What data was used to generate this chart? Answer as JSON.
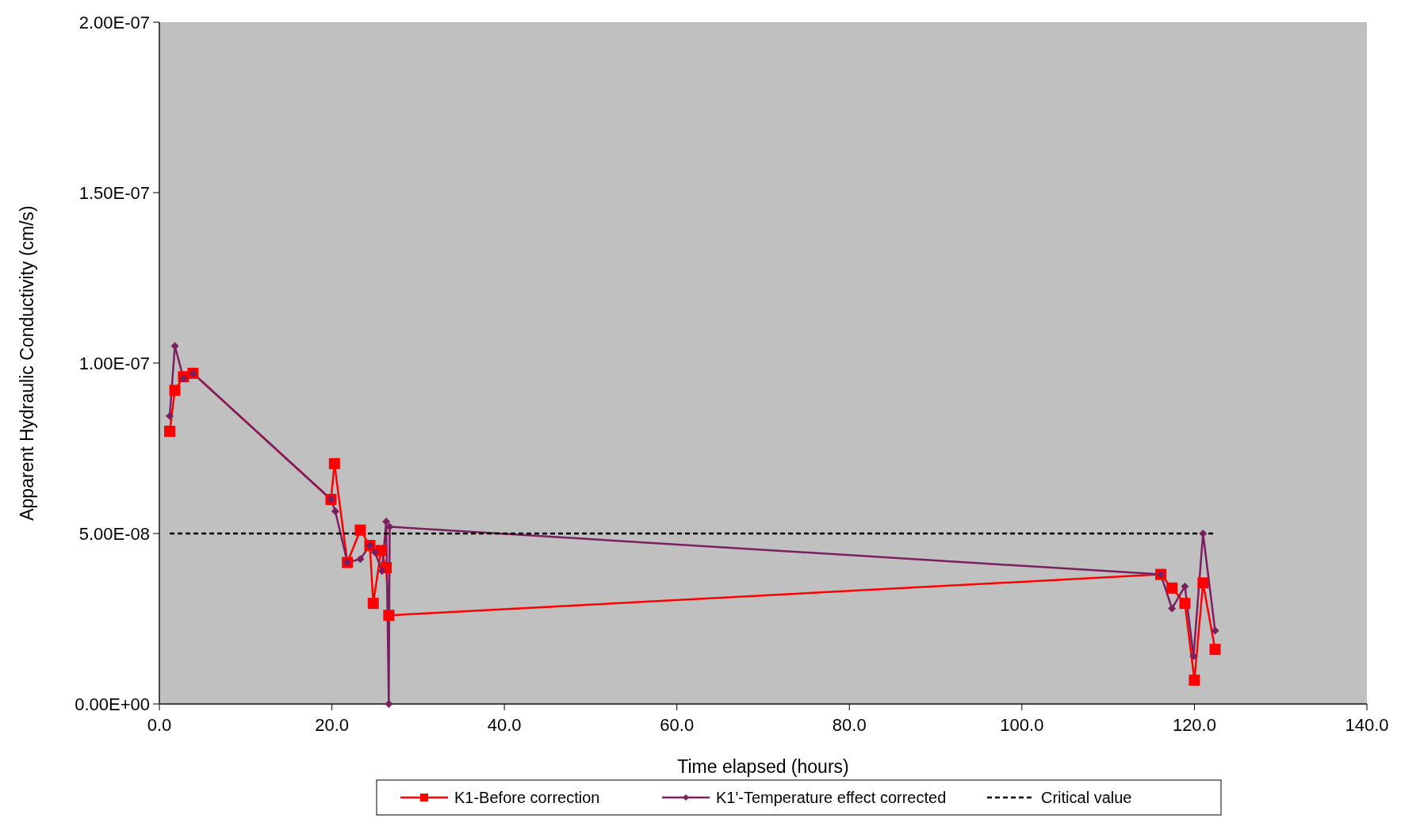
{
  "chart_data": {
    "type": "line",
    "xlabel": "Time elapsed (hours)",
    "ylabel": "Apparent Hydraulic Conductivity (cm/s)",
    "xlim": [
      0,
      140
    ],
    "xticks": [
      {
        "value": 0,
        "label": "0.0"
      },
      {
        "value": 20,
        "label": "20.0"
      },
      {
        "value": 40,
        "label": "40.0"
      },
      {
        "value": 60,
        "label": "60.0"
      },
      {
        "value": 80,
        "label": "80.0"
      },
      {
        "value": 100,
        "label": "100.0"
      },
      {
        "value": 120,
        "label": "120.0"
      },
      {
        "value": 140,
        "label": "140.0"
      }
    ],
    "ylim": [
      0,
      2e-07
    ],
    "yticks": [
      {
        "value": 0,
        "label": "0.00E+00"
      },
      {
        "value": 5e-08,
        "label": "5.00E-08"
      },
      {
        "value": 1e-07,
        "label": "1.00E-07"
      },
      {
        "value": 1.5e-07,
        "label": "1.50E-07"
      },
      {
        "value": 2e-07,
        "label": "2.00E-07"
      }
    ],
    "grid": false,
    "legend": "bottom",
    "series": [
      {
        "name": "K1-Before correction",
        "color": "#ff0000",
        "marker": "square",
        "line_style": "solid",
        "x": [
          1.2,
          1.8,
          2.8,
          3.9,
          19.9,
          20.3,
          21.8,
          23.3,
          24.4,
          24.8,
          25.7,
          26.3,
          26.6,
          116.1,
          117.4,
          118.9,
          120.0,
          121.0,
          122.4
        ],
        "values": [
          8e-08,
          9.2e-08,
          9.6e-08,
          9.7e-08,
          6e-08,
          7.05e-08,
          4.15e-08,
          5.1e-08,
          4.65e-08,
          2.95e-08,
          4.5e-08,
          4e-08,
          2.6e-08,
          3.8e-08,
          3.4e-08,
          2.95e-08,
          7e-09,
          3.55e-08,
          1.6e-08
        ]
      },
      {
        "name": "K1'-Temperature effect corrected",
        "color": "#7b1f5f",
        "marker": "diamond",
        "line_style": "solid",
        "x": [
          1.2,
          1.8,
          2.8,
          3.9,
          19.9,
          20.4,
          21.8,
          23.3,
          24.4,
          25.0,
          25.8,
          26.3,
          26.6,
          26.7,
          116.1,
          117.4,
          118.9,
          119.9,
          121.0,
          122.4
        ],
        "values": [
          8.45e-08,
          1.05e-07,
          9.55e-08,
          9.7e-08,
          6e-08,
          5.65e-08,
          4.15e-08,
          4.25e-08,
          4.65e-08,
          4.45e-08,
          3.9e-08,
          5.35e-08,
          0,
          5.2e-08,
          3.8e-08,
          2.8e-08,
          3.45e-08,
          1.4e-08,
          5e-08,
          2.15e-08
        ]
      },
      {
        "name": "Critical value",
        "color": "#000000",
        "marker": "none",
        "line_style": "dashed",
        "x": [
          1.2,
          122.4
        ],
        "values": [
          5e-08,
          5e-08
        ]
      }
    ]
  }
}
